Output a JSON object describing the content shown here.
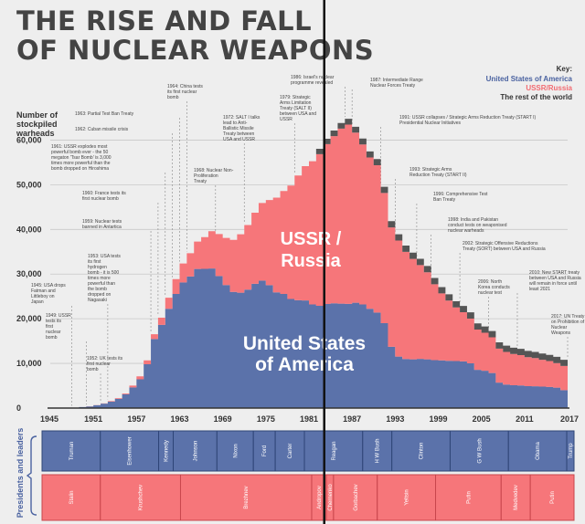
{
  "title_line1": "THE RISE AND FALL",
  "title_line2": "OF NUCLEAR WEAPONS",
  "key": {
    "title": "Key:",
    "usa": "United States of America",
    "ussr": "USSR/Russia",
    "rest": "The rest of the world"
  },
  "colors": {
    "usa": "#5b72aa",
    "ussr": "#f6767a",
    "rest": "#555555"
  },
  "chart_data": {
    "type": "area",
    "stacked": true,
    "ylabel": "Number of stockpiled warheads",
    "ylim": [
      0,
      65000
    ],
    "xlim": [
      1945,
      2017
    ],
    "yticks": [
      0,
      10000,
      20000,
      30000,
      40000,
      50000,
      60000
    ],
    "ytick_labels": [
      "0",
      "10,000",
      "20,000",
      "30,000",
      "40,000",
      "50,000",
      "60,000"
    ],
    "xticks": [
      1945,
      1951,
      1957,
      1963,
      1969,
      1975,
      1981,
      1987,
      1993,
      1999,
      2005,
      2011,
      2017
    ],
    "marker_year": 1983,
    "x": [
      1945,
      1946,
      1947,
      1948,
      1949,
      1950,
      1951,
      1952,
      1953,
      1954,
      1955,
      1956,
      1957,
      1958,
      1959,
      1960,
      1961,
      1962,
      1963,
      1964,
      1965,
      1966,
      1967,
      1968,
      1969,
      1970,
      1971,
      1972,
      1973,
      1974,
      1975,
      1976,
      1977,
      1978,
      1979,
      1980,
      1981,
      1982,
      1983,
      1984,
      1985,
      1986,
      1987,
      1988,
      1989,
      1990,
      1991,
      1992,
      1993,
      1994,
      1995,
      1996,
      1997,
      1998,
      1999,
      2000,
      2001,
      2002,
      2003,
      2004,
      2005,
      2006,
      2007,
      2008,
      2009,
      2010,
      2011,
      2012,
      2013,
      2014,
      2015,
      2016,
      2017
    ],
    "series": [
      {
        "name": "United States of America",
        "values": [
          6,
          11,
          32,
          110,
          235,
          369,
          640,
          1005,
          1436,
          2063,
          3057,
          4618,
          6444,
          9822,
          15468,
          18638,
          22229,
          25540,
          28133,
          29463,
          31139,
          31175,
          31255,
          29561,
          27552,
          26008,
          25830,
          26516,
          27835,
          28537,
          27519,
          25914,
          25542,
          24418,
          24138,
          24104,
          23208,
          22886,
          23305,
          23459,
          23368,
          23317,
          23575,
          23205,
          22217,
          21392,
          19008,
          13708,
          11511,
          10979,
          10904,
          11011,
          10903,
          10732,
          10685,
          10577,
          10526,
          10457,
          10027,
          8570,
          8360,
          7853,
          5709,
          5273,
          5113,
          5066,
          4897,
          4881,
          4804,
          4717,
          4571,
          4018,
          4018
        ]
      },
      {
        "name": "USSR/Russia",
        "values": [
          0,
          0,
          0,
          0,
          1,
          5,
          25,
          50,
          120,
          150,
          200,
          426,
          660,
          869,
          1060,
          1605,
          2471,
          3322,
          4238,
          5221,
          6129,
          7089,
          8339,
          9399,
          10538,
          11643,
          13092,
          14478,
          15915,
          17385,
          19055,
          21205,
          23044,
          25393,
          27935,
          30062,
          32049,
          33952,
          35804,
          37431,
          39197,
          40159,
          38107,
          35804,
          33885,
          32980,
          29154,
          26734,
          26000,
          24000,
          22500,
          21000,
          19500,
          17000,
          15000,
          13500,
          12000,
          11000,
          10000,
          9000,
          8500,
          8000,
          7600,
          7300,
          7000,
          6800,
          6500,
          6300,
          6000,
          5800,
          5500,
          5400,
          5200
        ]
      },
      {
        "name": "The rest of the world",
        "values": [
          0,
          0,
          0,
          0,
          0,
          0,
          0,
          0,
          0,
          0,
          0,
          0,
          0,
          0,
          0,
          0,
          0,
          0,
          0,
          0,
          0,
          0,
          0,
          0,
          0,
          0,
          0,
          0,
          0,
          0,
          0,
          0,
          0,
          0,
          0,
          0,
          0,
          1200,
          1200,
          1250,
          1250,
          1300,
          1300,
          1350,
          1350,
          1380,
          1380,
          1400,
          1400,
          1400,
          1400,
          1400,
          1400,
          1400,
          1400,
          1400,
          1400,
          1400,
          1400,
          1400,
          1400,
          1400,
          1400,
          1400,
          1400,
          1400,
          1400,
          1400,
          1400,
          1400,
          1400,
          1400,
          1400
        ]
      }
    ],
    "area_labels": {
      "ussr": [
        "USSR /",
        "Russia"
      ],
      "usa": [
        "United States",
        "of America"
      ]
    },
    "annotations": [
      {
        "year": 1948,
        "lines": [
          "1945: USA drops",
          "Fatman and",
          "Littleboy on",
          "Japan"
        ]
      },
      {
        "year": 1950,
        "lines": [
          "1949: USSR",
          "tests its",
          "first",
          "nuclear",
          "bomb"
        ]
      },
      {
        "year": 1952,
        "lines": [
          "1952: UK tests its",
          "first nuclear",
          "bomb"
        ]
      },
      {
        "year": 1953,
        "lines": [
          "1953: USA tests",
          "its first",
          "hydrogen",
          "bomb - it is 500",
          "times more",
          "powerful than",
          "the bomb",
          "dropped on",
          "Nagasaki"
        ]
      },
      {
        "year": 1959,
        "lines": [
          "1959: Nuclear tests",
          "banned in Antartica"
        ]
      },
      {
        "year": 1960,
        "lines": [
          "1960: France tests its",
          "first nuclear bomb"
        ]
      },
      {
        "year": 1961,
        "lines": [
          "1961: USSR explodes most",
          "powerful bomb ever - the 50",
          "megaton 'Tsar Bomb' is 3,000",
          "times more powerful than the",
          "bomb dropped on Hiroshima"
        ]
      },
      {
        "year": 1962,
        "lines": [
          "1962: Cuban missile crisis"
        ]
      },
      {
        "year": 1963,
        "lines": [
          "1963: Partial Test Ban Treaty"
        ]
      },
      {
        "year": 1964,
        "lines": [
          "1964: China tests",
          "its first nuclear",
          "bomb"
        ]
      },
      {
        "year": 1968,
        "lines": [
          "1968: Nuclear Non-",
          "Proliferation",
          "Treaty"
        ]
      },
      {
        "year": 1972,
        "lines": [
          "1972: SALT I talks",
          "lead to Anti-",
          "Ballistic Missile",
          "Treaty between",
          "USA and USSR"
        ]
      },
      {
        "year": 1979,
        "lines": [
          "1979: Strategic",
          "Arms Limitation",
          "Treaty (SALT II)",
          "between USA and",
          "USSR"
        ]
      },
      {
        "year": 1986,
        "lines": [
          "1986: Israel's nuclear",
          "programme revealed"
        ]
      },
      {
        "year": 1987,
        "lines": [
          "1987: Intermediate Range",
          "Nuclear Forces Treaty"
        ]
      },
      {
        "year": 1991,
        "lines": [
          "1991: USSR collapses / Strategic Arms Reduction Treaty (START I)",
          "Presidential Nuclear Initiatives"
        ]
      },
      {
        "year": 1993,
        "lines": [
          "1993: Strategic Arms",
          "Reduction Treaty (START II)"
        ]
      },
      {
        "year": 1996,
        "lines": [
          "1996: Comprehensive Test",
          "Ban Treaty"
        ]
      },
      {
        "year": 1998,
        "lines": [
          "1998: India and Pakistan",
          "conduct tests on weaponised",
          "nuclear warheads"
        ]
      },
      {
        "year": 2002,
        "lines": [
          "2002: Strategic Offensive Reductions",
          "Treaty (SORT) between USA and Russia"
        ]
      },
      {
        "year": 2006,
        "lines": [
          "2006: North",
          "Korea conducts",
          "nuclear test"
        ]
      },
      {
        "year": 2010,
        "lines": [
          "2010: New START treaty",
          "between USA and Russia",
          "will remain in force until",
          "least 2021"
        ]
      },
      {
        "year": 2017,
        "lines": [
          "2017: UN Treaty",
          "on Prohibition of",
          "Nuclear",
          "Weapons"
        ]
      }
    ]
  },
  "leaders": {
    "side_label": "Presidents and leaders",
    "presidents": [
      {
        "name": "Truman",
        "start": 1945,
        "end": 1953
      },
      {
        "name": "Eisenhower",
        "start": 1953,
        "end": 1961
      },
      {
        "name": "Kennedy",
        "start": 1961,
        "end": 1963
      },
      {
        "name": "Johnson",
        "start": 1963,
        "end": 1969
      },
      {
        "name": "Nixon",
        "start": 1969,
        "end": 1974
      },
      {
        "name": "Ford",
        "start": 1974,
        "end": 1977
      },
      {
        "name": "Carter",
        "start": 1977,
        "end": 1981
      },
      {
        "name": "Reagan",
        "start": 1981,
        "end": 1989
      },
      {
        "name": "H W Bush",
        "start": 1989,
        "end": 1993
      },
      {
        "name": "Clinton",
        "start": 1993,
        "end": 2001
      },
      {
        "name": "G W Bush",
        "start": 2001,
        "end": 2009
      },
      {
        "name": "Obama",
        "start": 2009,
        "end": 2017
      },
      {
        "name": "Trump",
        "start": 2017,
        "end": 2018
      }
    ],
    "soviet": [
      {
        "name": "Stalin",
        "start": 1945,
        "end": 1953
      },
      {
        "name": "Krushchev",
        "start": 1953,
        "end": 1964
      },
      {
        "name": "Brezhnev",
        "start": 1964,
        "end": 1982
      },
      {
        "name": "Andropov",
        "start": 1982,
        "end": 1984
      },
      {
        "name": "Chernenko",
        "start": 1984,
        "end": 1985
      },
      {
        "name": "Gorbachev",
        "start": 1985,
        "end": 1991
      },
      {
        "name": "Yeltsin",
        "start": 1991,
        "end": 1999
      },
      {
        "name": "Putin",
        "start": 1999,
        "end": 2008
      },
      {
        "name": "Medvedev",
        "start": 2008,
        "end": 2012
      },
      {
        "name": "Putin",
        "start": 2012,
        "end": 2018
      }
    ]
  }
}
